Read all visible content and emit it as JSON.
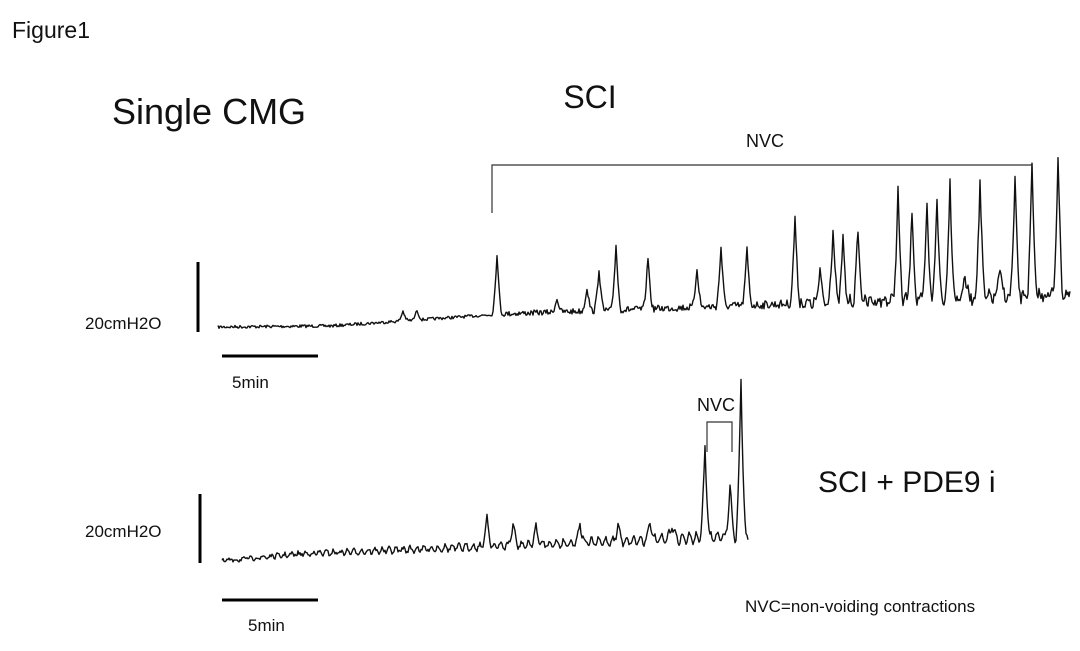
{
  "figure_label": "Figure1",
  "title": "Single CMG",
  "panels": [
    {
      "condition": "SCI",
      "bracket_label": "NVC",
      "pressure_scale": "20cmH2O",
      "time_scale": "5min"
    },
    {
      "condition": "SCI + PDE9 i",
      "bracket_label": "NVC",
      "pressure_scale": "20cmH2O",
      "time_scale": "5min"
    }
  ],
  "footnote": "NVC=non-voiding contractions"
}
